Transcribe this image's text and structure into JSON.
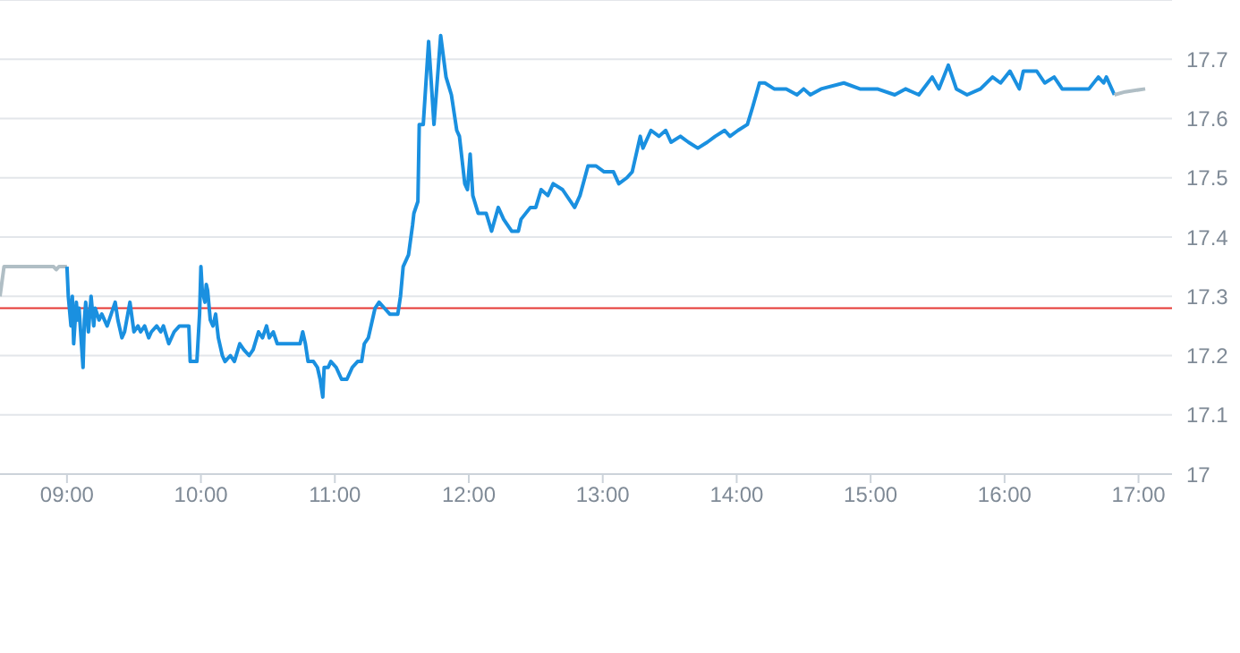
{
  "chart_data": {
    "type": "line",
    "xlim": [
      8.5,
      17.25
    ],
    "xticks": [
      {
        "value": 9,
        "label": "09:00"
      },
      {
        "value": 10,
        "label": "10:00"
      },
      {
        "value": 11,
        "label": "11:00"
      },
      {
        "value": 12,
        "label": "12:00"
      },
      {
        "value": 13,
        "label": "13:00"
      },
      {
        "value": 14,
        "label": "14:00"
      },
      {
        "value": 15,
        "label": "15:00"
      },
      {
        "value": 16,
        "label": "16:00"
      },
      {
        "value": 17,
        "label": "17:00"
      }
    ],
    "ylim": [
      17,
      17.8
    ],
    "yticks": [
      17,
      17.1,
      17.2,
      17.3,
      17.4,
      17.5,
      17.6,
      17.7
    ],
    "grid": "y",
    "marker": "none",
    "line_style": "solid",
    "ref_lines": [
      {
        "axis": "y",
        "value": 17.28,
        "color": "#e53935"
      }
    ],
    "series": [
      {
        "color": "#b0bec5",
        "x": [
          8.5,
          8.53,
          8.9,
          8.92,
          8.94,
          9.0
        ],
        "values": [
          17.3,
          17.35,
          17.35,
          17.345,
          17.35,
          17.35
        ]
      },
      {
        "color": "#1a90e0",
        "x": [
          9.0,
          9.01,
          9.03,
          9.04,
          9.05,
          9.07,
          9.08,
          9.09,
          9.12,
          9.13,
          9.14,
          9.16,
          9.18,
          9.2,
          9.21,
          9.24,
          9.26,
          9.3,
          9.33,
          9.36,
          9.38,
          9.41,
          9.43,
          9.47,
          9.5,
          9.53,
          9.55,
          9.58,
          9.61,
          9.63,
          9.67,
          9.7,
          9.72,
          9.76,
          9.8,
          9.84,
          9.88,
          9.91,
          9.92,
          9.95,
          9.97,
          9.99,
          10.0,
          10.01,
          10.03,
          10.04,
          10.05,
          10.07,
          10.09,
          10.11,
          10.13,
          10.16,
          10.18,
          10.22,
          10.25,
          10.29,
          10.32,
          10.36,
          10.39,
          10.43,
          10.46,
          10.49,
          10.51,
          10.54,
          10.57,
          10.59,
          10.64,
          10.7,
          10.74,
          10.76,
          10.78,
          10.8,
          10.84,
          10.87,
          10.89,
          10.91,
          10.92,
          10.95,
          10.97,
          11.01,
          11.05,
          11.09,
          11.13,
          11.17,
          11.2,
          11.22,
          11.25,
          11.28,
          11.3,
          11.33,
          11.37,
          11.41,
          11.43,
          11.47,
          11.49,
          11.51,
          11.55,
          11.58,
          11.59,
          11.62,
          11.63,
          11.66,
          11.7,
          11.74,
          11.79,
          11.83,
          11.87,
          11.91,
          11.93,
          11.97,
          11.99,
          12.01,
          12.03,
          12.07,
          12.13,
          12.17,
          12.22,
          12.26,
          12.32,
          12.37,
          12.39,
          12.46,
          12.5,
          12.54,
          12.59,
          12.63,
          12.7,
          12.79,
          12.83,
          12.89,
          12.95,
          13.01,
          13.08,
          13.12,
          13.18,
          13.22,
          13.28,
          13.3,
          13.36,
          13.42,
          13.47,
          13.51,
          13.58,
          13.64,
          13.71,
          13.78,
          13.84,
          13.91,
          13.95,
          14.01,
          14.08,
          14.12,
          14.17,
          14.21,
          14.28,
          14.37,
          14.45,
          14.5,
          14.55,
          14.63,
          14.8,
          14.92,
          15.05,
          15.18,
          15.26,
          15.36,
          15.46,
          15.51,
          15.58,
          15.64,
          15.72,
          15.82,
          15.91,
          15.97,
          16.04,
          16.11,
          16.14,
          16.24,
          16.3,
          16.37,
          16.43,
          16.54,
          16.63,
          16.7,
          16.74,
          16.76,
          16.82
        ],
        "values": [
          17.35,
          17.3,
          17.25,
          17.3,
          17.22,
          17.29,
          17.26,
          17.28,
          17.18,
          17.26,
          17.29,
          17.24,
          17.3,
          17.25,
          17.28,
          17.26,
          17.27,
          17.25,
          17.27,
          17.29,
          17.26,
          17.23,
          17.24,
          17.29,
          17.24,
          17.25,
          17.24,
          17.25,
          17.23,
          17.24,
          17.25,
          17.24,
          17.25,
          17.22,
          17.24,
          17.25,
          17.25,
          17.25,
          17.19,
          17.19,
          17.19,
          17.27,
          17.35,
          17.31,
          17.29,
          17.32,
          17.31,
          17.26,
          17.25,
          17.27,
          17.23,
          17.2,
          17.19,
          17.2,
          17.19,
          17.22,
          17.21,
          17.2,
          17.21,
          17.24,
          17.23,
          17.25,
          17.23,
          17.24,
          17.22,
          17.22,
          17.22,
          17.22,
          17.22,
          17.24,
          17.22,
          17.19,
          17.19,
          17.18,
          17.16,
          17.13,
          17.18,
          17.18,
          17.19,
          17.18,
          17.16,
          17.16,
          17.18,
          17.19,
          17.19,
          17.22,
          17.23,
          17.26,
          17.28,
          17.29,
          17.28,
          17.27,
          17.27,
          17.27,
          17.3,
          17.35,
          17.37,
          17.42,
          17.44,
          17.46,
          17.59,
          17.59,
          17.73,
          17.59,
          17.74,
          17.67,
          17.64,
          17.58,
          17.57,
          17.49,
          17.48,
          17.54,
          17.47,
          17.44,
          17.44,
          17.41,
          17.45,
          17.43,
          17.41,
          17.41,
          17.43,
          17.45,
          17.45,
          17.48,
          17.47,
          17.49,
          17.48,
          17.45,
          17.47,
          17.52,
          17.52,
          17.51,
          17.51,
          17.49,
          17.5,
          17.51,
          17.57,
          17.55,
          17.58,
          17.57,
          17.58,
          17.56,
          17.57,
          17.56,
          17.55,
          17.56,
          17.57,
          17.58,
          17.57,
          17.58,
          17.59,
          17.62,
          17.66,
          17.66,
          17.65,
          17.65,
          17.64,
          17.65,
          17.64,
          17.65,
          17.66,
          17.65,
          17.65,
          17.64,
          17.65,
          17.64,
          17.67,
          17.65,
          17.69,
          17.65,
          17.64,
          17.65,
          17.67,
          17.66,
          17.68,
          17.65,
          17.68,
          17.68,
          17.66,
          17.67,
          17.65,
          17.65,
          17.65,
          17.67,
          17.66,
          17.67,
          17.64
        ]
      },
      {
        "color": "#b0bec5",
        "x": [
          16.82,
          16.9,
          17.05
        ],
        "values": [
          17.64,
          17.645,
          17.65
        ]
      }
    ]
  }
}
